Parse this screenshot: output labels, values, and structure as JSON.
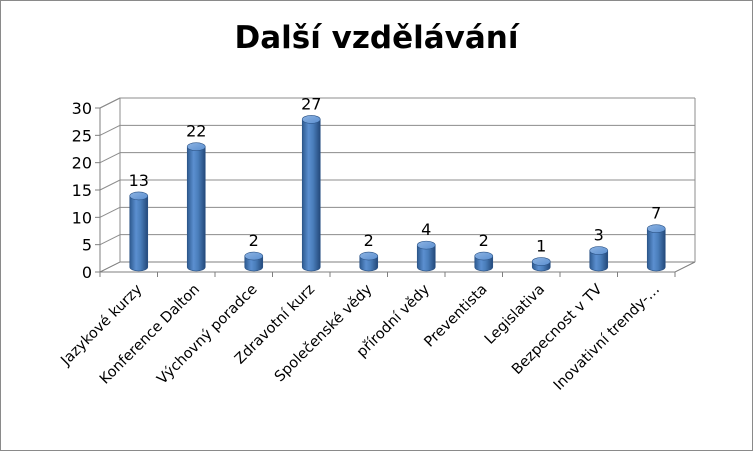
{
  "chart_data": {
    "type": "bar",
    "title": "Další vzdělávání",
    "categories": [
      "Jazykové kurzy",
      "Konference Dalton",
      "Výchovný poradce",
      "Zdravotní kurz",
      "Společenské vědy",
      "přírodní vědy",
      "Preventista",
      "Legislativa",
      "Bezpecnost v TV",
      "Inovativní trendy-…"
    ],
    "values": [
      13,
      22,
      2,
      27,
      2,
      4,
      2,
      1,
      3,
      7
    ],
    "data_labels": [
      "13",
      "22",
      "2",
      "27",
      "2",
      "4",
      "2",
      "1",
      "3",
      "7"
    ],
    "ylim": [
      0,
      30
    ],
    "yticks": [
      "0",
      "5",
      "10",
      "15",
      "20",
      "25",
      "30"
    ],
    "xlabel": "",
    "ylabel": "",
    "grid": true,
    "legend": "none",
    "style": "3d-cylinder",
    "bar_color": "#4a7ebb"
  }
}
